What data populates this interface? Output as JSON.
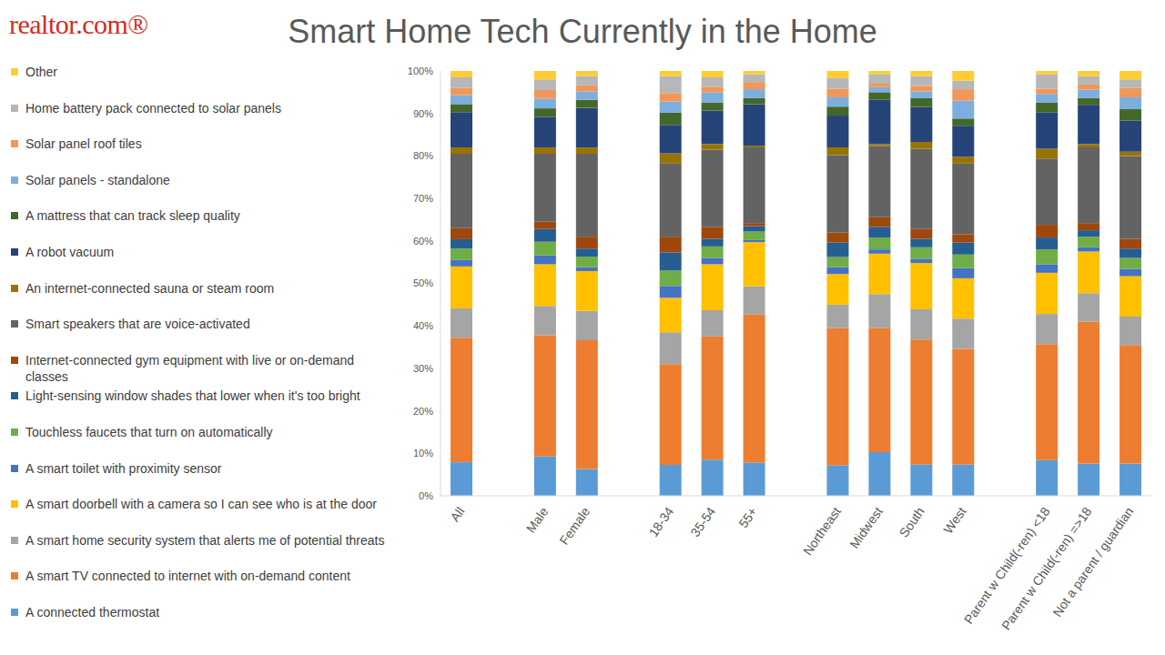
{
  "chart_data": {
    "type": "bar",
    "logo": "realtor.com®",
    "title": "Smart Home Tech Currently in the Home",
    "stacked": true,
    "grid": false,
    "legend": "left",
    "categories": [
      "All",
      null,
      "Male",
      "Female",
      null,
      "18-34",
      "35-54",
      "55+",
      null,
      "Northeast",
      "Midwest",
      "South",
      "West",
      null,
      "Parent w Child(-ren) <18",
      "Parent w Child(-ren) =>18",
      "Not a parent / guardian"
    ],
    "ylim": [
      0,
      100
    ],
    "yticks": [
      {
        "value": 0,
        "label": "0%"
      },
      {
        "value": 10,
        "label": "10%"
      },
      {
        "value": 20,
        "label": "20%"
      },
      {
        "value": 30,
        "label": "30%"
      },
      {
        "value": 40,
        "label": "40%"
      },
      {
        "value": 50,
        "label": "50%"
      },
      {
        "value": 60,
        "label": "60%"
      },
      {
        "value": 70,
        "label": "70%"
      },
      {
        "value": 80,
        "label": "80%"
      },
      {
        "value": 90,
        "label": "90%"
      },
      {
        "value": 100,
        "label": "100%"
      }
    ],
    "series": [
      {
        "name": "A connected thermostat",
        "color": "#5B9BD5",
        "values": [
          7.9,
          null,
          9.3,
          6.3,
          null,
          7.3,
          8.5,
          7.8,
          null,
          7.2,
          10.3,
          7.4,
          7.4,
          null,
          8.4,
          7.6,
          7.6
        ]
      },
      {
        "name": "A smart TV connected to internet with on-demand content",
        "color": "#ED7D31",
        "values": [
          29.3,
          null,
          28.5,
          30.3,
          null,
          23.7,
          29,
          34.9,
          null,
          32.3,
          29.2,
          29.4,
          27.2,
          null,
          27.3,
          33.4,
          27.9
        ]
      },
      {
        "name": "A smart home security system that alerts me of potential threats",
        "color": "#A5A5A5",
        "values": [
          6.9,
          null,
          6.9,
          6.9,
          null,
          7.5,
          6.2,
          6.6,
          null,
          5.5,
          8,
          7.1,
          7.1,
          null,
          7.1,
          6.7,
          6.7
        ]
      },
      {
        "name": "A smart doorbell with a camera so I can see who is at the door",
        "color": "#FFC000",
        "values": [
          9.9,
          null,
          9.8,
          9.4,
          null,
          8.1,
          10.8,
          10.4,
          null,
          7.2,
          9.5,
          10.9,
          9.5,
          null,
          9.7,
          9.8,
          9.5
        ]
      },
      {
        "name": "A smart toilet with proximity sensor",
        "color": "#4472C4",
        "values": [
          1.5,
          null,
          2.1,
          0.9,
          null,
          2.8,
          1.5,
          0.5,
          null,
          1.6,
          1,
          1,
          2.4,
          null,
          2,
          1,
          1.7
        ]
      },
      {
        "name": "Touchless faucets that turn on automatically",
        "color": "#70AD47",
        "values": [
          2.7,
          null,
          3.2,
          2.5,
          null,
          3.6,
          2.7,
          2,
          null,
          2.4,
          2.8,
          2.7,
          3.2,
          null,
          3.5,
          2.5,
          2.6
        ]
      },
      {
        "name": "Light-sensing window shades that lower when it's too bright",
        "color": "#255E91",
        "values": [
          2.2,
          null,
          3,
          1.9,
          null,
          4.3,
          1.8,
          1.3,
          null,
          3.4,
          2.5,
          2,
          2.8,
          null,
          2.8,
          1.5,
          2.2
        ]
      },
      {
        "name": "Internet-connected gym equipment with live or on-demand classes",
        "color": "#9E480E",
        "values": [
          2.6,
          null,
          1.7,
          2.8,
          null,
          3.7,
          2.8,
          0.7,
          null,
          2.4,
          2.3,
          2.3,
          2,
          null,
          3,
          1.7,
          2.3
        ]
      },
      {
        "name": "Smart speakers that are voice-activated",
        "color": "#636363",
        "values": [
          17.5,
          null,
          16,
          19.5,
          null,
          17.3,
          18.2,
          17.8,
          null,
          18.2,
          16.7,
          18.9,
          16.6,
          null,
          15.6,
          17.8,
          19.5
        ]
      },
      {
        "name": "An internet-connected sauna or steam room",
        "color": "#997300",
        "values": [
          1.5,
          null,
          1.5,
          1.5,
          null,
          2.3,
          1.3,
          0.4,
          null,
          1.8,
          0.5,
          1.6,
          1.6,
          null,
          2.3,
          0.8,
          1
        ]
      },
      {
        "name": "A robot vacuum",
        "color": "#264478",
        "values": [
          8.3,
          null,
          7.2,
          9.3,
          null,
          6.7,
          7.9,
          9.8,
          null,
          7.5,
          10.4,
          8.2,
          7.3,
          null,
          8.5,
          9.2,
          7.3
        ]
      },
      {
        "name": "A mattress that can track sleep quality",
        "color": "#43682B",
        "values": [
          1.9,
          null,
          2,
          1.9,
          null,
          2.9,
          1.9,
          1.4,
          null,
          2.1,
          1.8,
          2.1,
          1.7,
          null,
          2.4,
          1.6,
          2.7
        ]
      },
      {
        "name": "Solar panels - standalone",
        "color": "#7CAFDD",
        "values": [
          2.1,
          null,
          2.3,
          2,
          null,
          2.6,
          2.4,
          2.1,
          null,
          2.2,
          1.2,
          1.6,
          4.2,
          null,
          2,
          2,
          2.8
        ]
      },
      {
        "name": "Solar panel roof tiles",
        "color": "#F1975A",
        "values": [
          1.7,
          null,
          2,
          1.4,
          null,
          2,
          1.3,
          1.7,
          null,
          2,
          0.8,
          1.3,
          2.7,
          null,
          1.2,
          1.2,
          2.2
        ]
      },
      {
        "name": "Home battery pack connected to solar panels",
        "color": "#B7B7B7",
        "values": [
          2.5,
          null,
          2.5,
          2.2,
          null,
          4,
          2.2,
          1.8,
          null,
          2.5,
          2.2,
          2.3,
          2,
          null,
          3.4,
          2,
          2
        ]
      },
      {
        "name": "Other",
        "color": "#FFCD33",
        "values": [
          1.5,
          null,
          2,
          1.2,
          null,
          1.2,
          1.5,
          0.8,
          null,
          1.7,
          0.8,
          1.2,
          2.3,
          null,
          0.8,
          1.2,
          2
        ]
      }
    ]
  }
}
